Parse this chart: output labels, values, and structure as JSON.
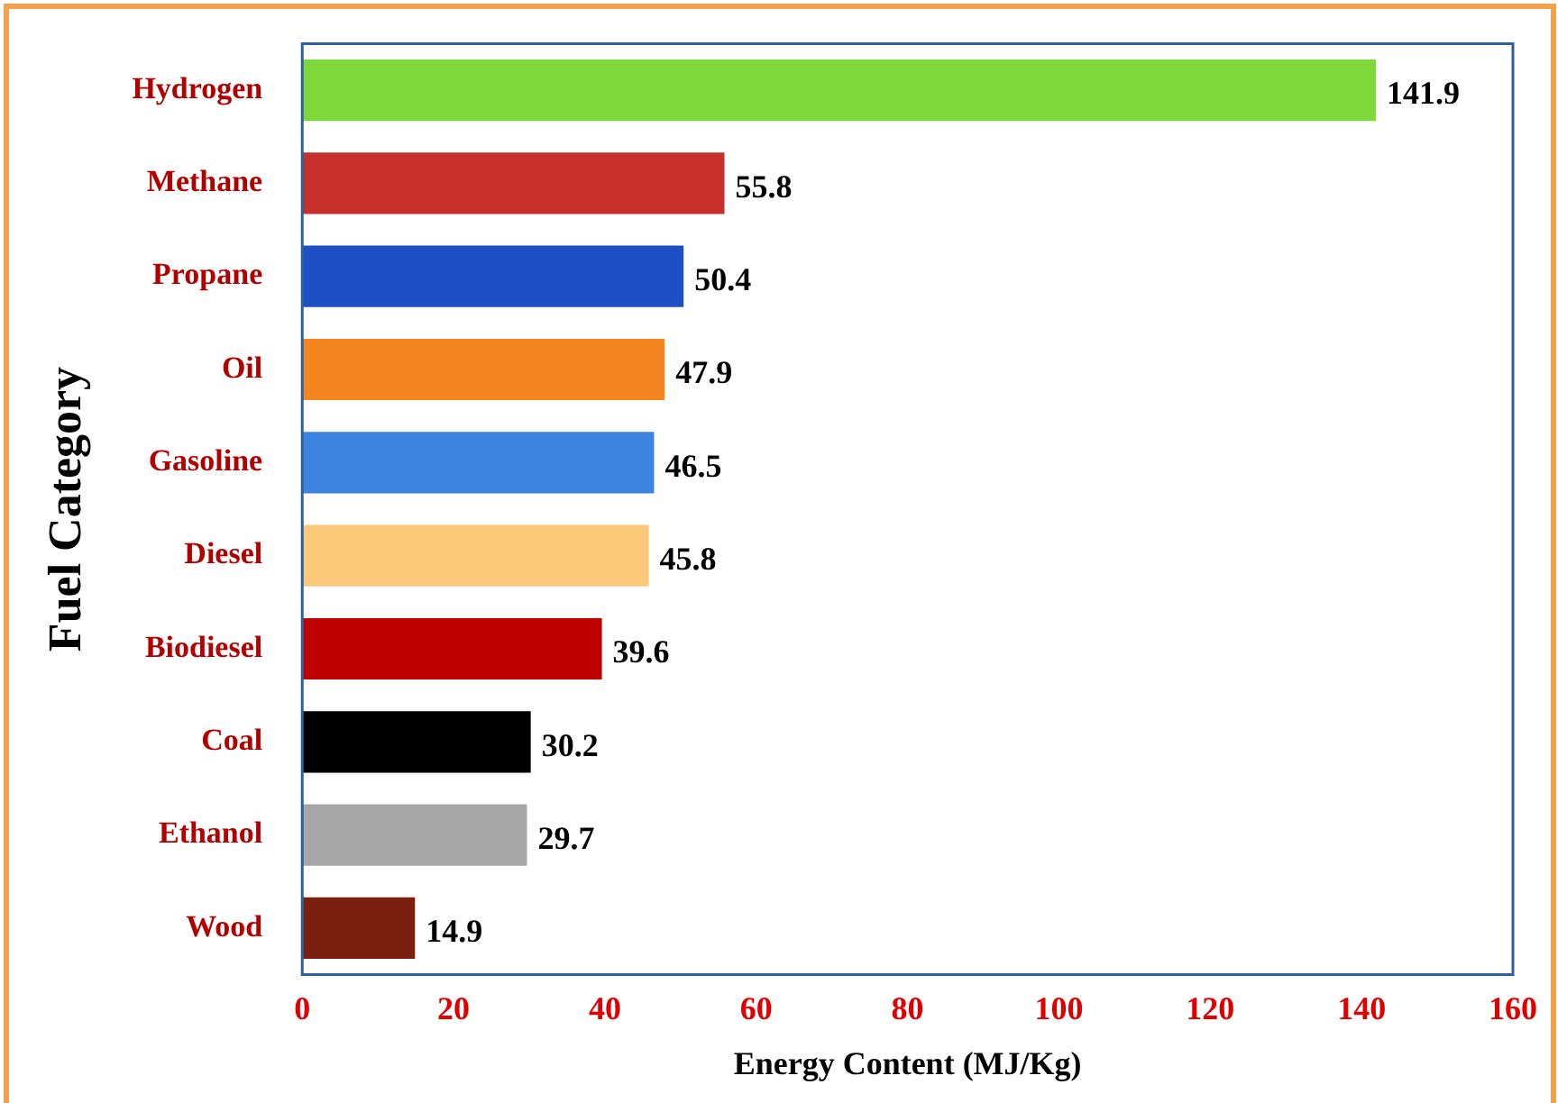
{
  "chart_data": {
    "type": "bar",
    "orientation": "horizontal",
    "xlabel": "Energy Content (MJ/Kg)",
    "ylabel": "Fuel Category",
    "categories": [
      "Hydrogen",
      "Methane",
      "Propane",
      "Oil",
      "Gasoline",
      "Diesel",
      "Biodiesel",
      "Coal",
      "Ethanol",
      "Wood"
    ],
    "values": [
      141.9,
      55.8,
      50.4,
      47.9,
      46.5,
      45.8,
      39.6,
      30.2,
      29.7,
      14.9
    ],
    "colors": [
      "#7ed83a",
      "#c8302c",
      "#1f4fc4",
      "#f5861f",
      "#3c84e0",
      "#fcc97a",
      "#c00000",
      "#000000",
      "#a6a6a6",
      "#7b1f0f"
    ],
    "xlim": [
      0,
      160
    ],
    "xticks": [
      0,
      20,
      40,
      60,
      80,
      100,
      120,
      140,
      160
    ],
    "grid": false,
    "data_labels": true,
    "legend": false
  }
}
